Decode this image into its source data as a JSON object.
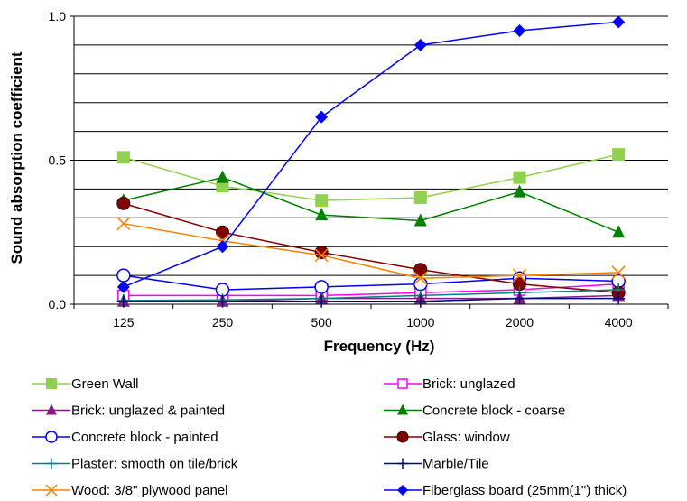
{
  "chart_data": {
    "type": "line",
    "title": "",
    "xlabel": "Frequency (Hz)",
    "ylabel": "Sound absorption coefficient",
    "categories": [
      "125",
      "250",
      "500",
      "1000",
      "2000",
      "4000"
    ],
    "ylim": [
      0,
      1
    ],
    "yticks": [
      {
        "value": 0,
        "label": "0.0"
      },
      {
        "value": 0.5,
        "label": "0.5"
      },
      {
        "value": 1,
        "label": "1.0"
      }
    ],
    "grid": true,
    "legend_position": "bottom",
    "series": [
      {
        "name": "Green Wall",
        "color": "#92d050",
        "marker": "square-filled",
        "values": [
          0.51,
          0.41,
          0.36,
          0.37,
          0.44,
          0.52
        ]
      },
      {
        "name": "Brick: unglazed",
        "color": "#ff00ff",
        "marker": "square-open",
        "values": [
          0.03,
          0.03,
          0.03,
          0.04,
          0.05,
          0.07
        ]
      },
      {
        "name": "Brick: unglazed & painted",
        "color": "#7f1f7f",
        "marker": "triangle-filled",
        "values": [
          0.01,
          0.01,
          0.02,
          0.02,
          0.02,
          0.03
        ]
      },
      {
        "name": "Concrete block - coarse",
        "color": "#008000",
        "marker": "triangle-filled",
        "values": [
          0.36,
          0.44,
          0.31,
          0.29,
          0.39,
          0.25
        ]
      },
      {
        "name": "Concrete block - painted",
        "color": "#0000ff",
        "marker": "circle-open",
        "values": [
          0.1,
          0.05,
          0.06,
          0.07,
          0.09,
          0.08
        ]
      },
      {
        "name": "Glass: window",
        "color": "#800000",
        "marker": "circle-filled",
        "values": [
          0.35,
          0.25,
          0.18,
          0.12,
          0.07,
          0.04
        ]
      },
      {
        "name": "Plaster: smooth on tile/brick",
        "color": "#008080",
        "marker": "plus",
        "values": [
          0.013,
          0.015,
          0.02,
          0.03,
          0.04,
          0.05
        ]
      },
      {
        "name": "Marble/Tile",
        "color": "#000080",
        "marker": "plus",
        "values": [
          0.01,
          0.01,
          0.01,
          0.01,
          0.02,
          0.02
        ]
      },
      {
        "name": "Wood: 3/8\" plywood panel",
        "color": "#ff8000",
        "marker": "x",
        "values": [
          0.28,
          0.22,
          0.17,
          0.09,
          0.1,
          0.11
        ]
      },
      {
        "name": "Fiberglass board (25mm(1\") thick)",
        "color": "#0000ff",
        "marker": "diamond-filled",
        "values": [
          0.06,
          0.2,
          0.65,
          0.9,
          0.95,
          0.98
        ]
      }
    ]
  }
}
